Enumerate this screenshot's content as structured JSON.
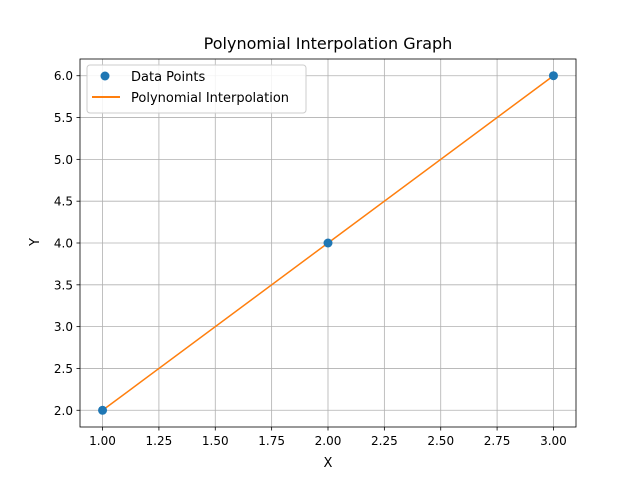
{
  "chart_data": {
    "type": "line",
    "title": "Polynomial Interpolation Graph",
    "xlabel": "X",
    "ylabel": "Y",
    "xlim": [
      0.9,
      3.1
    ],
    "ylim": [
      1.8,
      6.2
    ],
    "grid": true,
    "legend_position": "top-left",
    "x_ticks": [
      1.0,
      1.25,
      1.5,
      1.75,
      2.0,
      2.25,
      2.5,
      2.75,
      3.0
    ],
    "x_tick_labels": [
      "1.00",
      "1.25",
      "1.50",
      "1.75",
      "2.00",
      "2.25",
      "2.50",
      "2.75",
      "3.00"
    ],
    "y_ticks": [
      2.0,
      2.5,
      3.0,
      3.5,
      4.0,
      4.5,
      5.0,
      5.5,
      6.0
    ],
    "y_tick_labels": [
      "2.0",
      "2.5",
      "3.0",
      "3.5",
      "4.0",
      "4.5",
      "5.0",
      "5.5",
      "6.0"
    ],
    "series": [
      {
        "name": "Data Points",
        "kind": "scatter",
        "color": "#1f77b4",
        "x": [
          1,
          2,
          3
        ],
        "y": [
          2,
          4,
          6
        ]
      },
      {
        "name": "Polynomial Interpolation",
        "kind": "line",
        "color": "#ff7f0e",
        "x": [
          1,
          2,
          3
        ],
        "y": [
          2,
          4,
          6
        ]
      }
    ]
  }
}
